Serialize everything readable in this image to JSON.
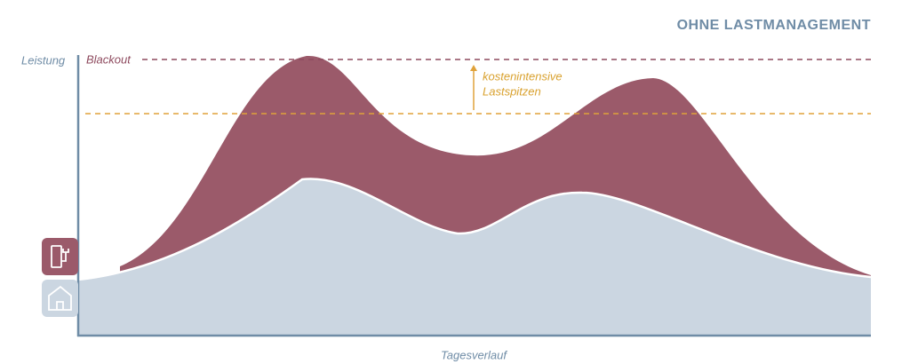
{
  "header": {
    "title": "OHNE LASTMANAGEMENT"
  },
  "axis": {
    "y_label": "Leistung",
    "x_label": "Tagesverlauf"
  },
  "annotations": {
    "blackout": "Blackout",
    "peaks": [
      "kostenintensive",
      "Lastspitzen"
    ]
  }
}
